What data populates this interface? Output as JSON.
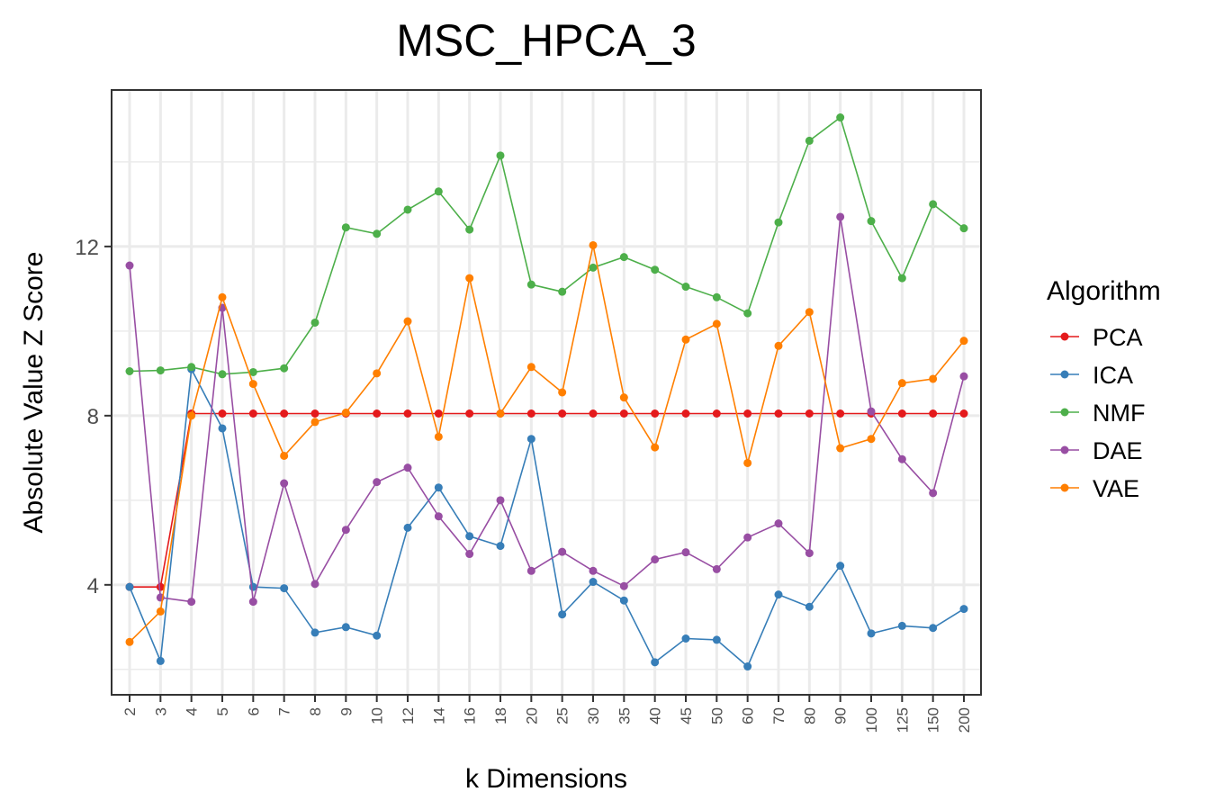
{
  "chart_data": {
    "type": "line",
    "title": "MSC_HPCA_3",
    "xlabel": "k Dimensions",
    "ylabel": "Absolute Value Z Score",
    "categories": [
      "2",
      "3",
      "4",
      "5",
      "6",
      "7",
      "8",
      "9",
      "10",
      "12",
      "14",
      "16",
      "18",
      "20",
      "25",
      "30",
      "35",
      "40",
      "45",
      "50",
      "60",
      "70",
      "80",
      "90",
      "100",
      "125",
      "150",
      "200"
    ],
    "yticks": [
      4,
      8,
      12
    ],
    "ylim": [
      1.4,
      15.7
    ],
    "grid": true,
    "legend": {
      "title": "Algorithm",
      "position": "right"
    },
    "series": [
      {
        "name": "PCA",
        "color": "#E41A1C",
        "values": [
          3.95,
          3.95,
          8.05,
          8.05,
          8.05,
          8.05,
          8.05,
          8.05,
          8.05,
          8.05,
          8.05,
          8.05,
          8.05,
          8.05,
          8.05,
          8.05,
          8.05,
          8.05,
          8.05,
          8.05,
          8.05,
          8.05,
          8.05,
          8.05,
          8.05,
          8.05,
          8.05,
          8.05
        ]
      },
      {
        "name": "ICA",
        "color": "#377EB8",
        "values": [
          3.95,
          2.2,
          9.1,
          7.7,
          3.95,
          3.92,
          2.87,
          3.0,
          2.8,
          5.35,
          6.3,
          5.15,
          4.92,
          7.45,
          3.3,
          4.07,
          3.63,
          2.17,
          2.73,
          2.7,
          2.07,
          3.77,
          3.48,
          4.45,
          2.85,
          3.03,
          2.98,
          3.43
        ]
      },
      {
        "name": "NMF",
        "color": "#4DAF4A",
        "values": [
          9.05,
          9.07,
          9.15,
          8.98,
          9.03,
          9.12,
          10.2,
          12.45,
          12.3,
          12.87,
          13.3,
          12.4,
          14.15,
          11.1,
          10.93,
          11.5,
          11.75,
          11.45,
          11.05,
          10.8,
          10.42,
          12.57,
          14.5,
          15.05,
          12.6,
          11.25,
          13.0,
          12.43
        ]
      },
      {
        "name": "DAE",
        "color": "#984EA3",
        "values": [
          11.55,
          3.7,
          3.6,
          10.55,
          3.6,
          6.4,
          4.02,
          5.3,
          6.43,
          6.77,
          5.62,
          4.73,
          6.0,
          4.33,
          4.78,
          4.33,
          3.97,
          4.6,
          4.77,
          4.37,
          5.12,
          5.45,
          4.75,
          12.7,
          8.1,
          6.97,
          6.17,
          8.93
        ]
      },
      {
        "name": "VAE",
        "color": "#FF7F00",
        "values": [
          2.65,
          3.37,
          8.0,
          10.8,
          8.75,
          7.05,
          7.85,
          8.07,
          9.0,
          10.23,
          7.5,
          11.25,
          8.05,
          9.15,
          8.55,
          12.03,
          8.43,
          7.25,
          9.8,
          10.17,
          6.88,
          9.65,
          10.45,
          7.23,
          7.45,
          8.77,
          8.87,
          9.77
        ]
      }
    ]
  }
}
